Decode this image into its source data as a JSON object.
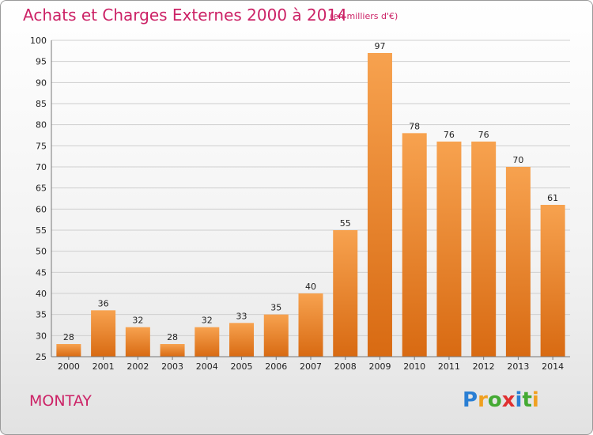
{
  "header": {
    "title": "Achats et Charges Externes 2000 à 2014",
    "unit_note": "(en milliers d'€)"
  },
  "footer": {
    "commune": "MONTAY",
    "logo_letters": [
      {
        "char": "P",
        "color": "#2a7fd4"
      },
      {
        "char": "r",
        "color": "#f0a020"
      },
      {
        "char": "o",
        "color": "#44aa33"
      },
      {
        "char": "x",
        "color": "#e03030"
      },
      {
        "char": "i",
        "color": "#2a7fd4"
      },
      {
        "char": "t",
        "color": "#44aa33"
      },
      {
        "char": "i",
        "color": "#f0a020"
      }
    ]
  },
  "chart_data": {
    "type": "bar",
    "categories": [
      "2000",
      "2001",
      "2002",
      "2003",
      "2004",
      "2005",
      "2006",
      "2007",
      "2008",
      "2009",
      "2010",
      "2011",
      "2012",
      "2013",
      "2014"
    ],
    "values": [
      28,
      36,
      32,
      28,
      32,
      33,
      35,
      40,
      55,
      97,
      78,
      76,
      76,
      70,
      61
    ],
    "data_labels": [
      "28",
      "36",
      "32",
      "28",
      "32",
      "33",
      "35",
      "40",
      "55",
      "97",
      "78",
      "76",
      "76",
      "70",
      "61"
    ],
    "title": "Achats et Charges Externes 2000 à 2014",
    "ylabel": "",
    "xlabel": "",
    "ylim": [
      25,
      100
    ],
    "yticks": [
      25,
      30,
      35,
      40,
      45,
      50,
      55,
      60,
      65,
      70,
      75,
      80,
      85,
      90,
      95,
      100
    ],
    "grid": true,
    "bar_color_top": "#f7a24f",
    "bar_color_bottom": "#d86a12"
  }
}
